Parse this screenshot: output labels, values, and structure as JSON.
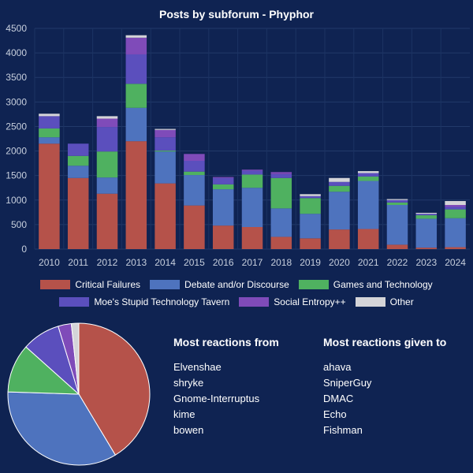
{
  "chart_data": [
    {
      "type": "bar",
      "stacked": true,
      "title": "Posts by subforum - Phyphor",
      "xlabel": "",
      "ylabel": "",
      "ylim": [
        0,
        4500
      ],
      "yticks": [
        0,
        500,
        1000,
        1500,
        2000,
        2500,
        3000,
        3500,
        4000,
        4500
      ],
      "grid": true,
      "legend": "bottom",
      "categories": [
        "2010",
        "2011",
        "2012",
        "2013",
        "2014",
        "2015",
        "2016",
        "2017",
        "2018",
        "2019",
        "2020",
        "2021",
        "2022",
        "2023",
        "2024"
      ],
      "series": [
        {
          "name": "Critical Failures",
          "color": "#b5524a",
          "values": [
            2150,
            1450,
            1130,
            2200,
            1340,
            890,
            480,
            450,
            250,
            220,
            400,
            410,
            90,
            30,
            40
          ]
        },
        {
          "name": "Debate and/or Discourse",
          "color": "#4e73be",
          "values": [
            130,
            250,
            330,
            680,
            650,
            620,
            740,
            800,
            580,
            500,
            770,
            980,
            810,
            590,
            590
          ]
        },
        {
          "name": "Games and Technology",
          "color": "#4fb160",
          "values": [
            180,
            200,
            530,
            490,
            20,
            70,
            100,
            270,
            620,
            320,
            120,
            90,
            50,
            70,
            180
          ]
        },
        {
          "name": "Moe's Stupid Technology Tavern",
          "color": "#5b4fbd",
          "values": [
            250,
            250,
            500,
            600,
            270,
            220,
            130,
            80,
            80,
            40,
            80,
            70,
            50,
            30,
            50
          ]
        },
        {
          "name": "Social Entropy++",
          "color": "#7f4bb9",
          "values": [
            0,
            0,
            170,
            340,
            150,
            140,
            20,
            20,
            40,
            0,
            0,
            0,
            0,
            0,
            40
          ]
        },
        {
          "name": "Other",
          "color": "#d4d4d8",
          "values": [
            50,
            0,
            50,
            50,
            20,
            0,
            0,
            0,
            0,
            40,
            80,
            40,
            20,
            20,
            80
          ]
        }
      ]
    },
    {
      "type": "pie",
      "labels": [
        "Critical Failures",
        "Debate and/or Discourse",
        "Games and Technology",
        "Moe's Stupid Technology Tavern",
        "Social Entropy++",
        "Other"
      ],
      "colors": [
        "#b5524a",
        "#4e73be",
        "#4fb160",
        "#5b4fbd",
        "#7f4bb9",
        "#d4d4d8"
      ],
      "values": [
        41.4,
        34.1,
        11.1,
        8.7,
        3.0,
        1.7
      ]
    }
  ],
  "lists": {
    "reactions_from": {
      "heading": "Most reactions from",
      "items": [
        "Elvenshae",
        "shryke",
        "Gnome-Interruptus",
        "kime",
        "bowen"
      ]
    },
    "reactions_to": {
      "heading": "Most reactions given to",
      "items": [
        "ahava",
        "SniperGuy",
        "DMAC",
        "Echo",
        "Fishman"
      ]
    }
  }
}
